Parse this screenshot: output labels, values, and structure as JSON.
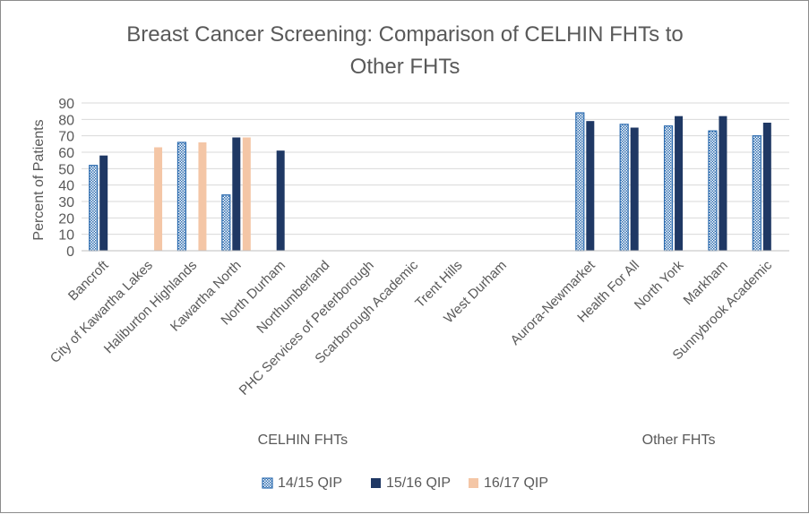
{
  "chart_data": {
    "type": "bar",
    "title_line1": "Breast Cancer Screening: Comparison of CELHIN FHTs to",
    "title_line2": "Other FHTs",
    "ylabel": "Percent of Patients",
    "xlabel": "",
    "ylim": [
      0,
      90
    ],
    "yticks": [
      0,
      10,
      20,
      30,
      40,
      50,
      60,
      70,
      80,
      90
    ],
    "grid": true,
    "legend_position": "bottom",
    "groups": [
      {
        "label": "CELHIN FHTs",
        "start": 0,
        "end": 9
      },
      {
        "label": "Other FHTs",
        "start": 11,
        "end": 15
      }
    ],
    "categories": [
      "Bancroft",
      "City of Kawartha Lakes",
      "Haliburton Highlands",
      "Kawartha North",
      "North Durham",
      "Northumberland",
      "PHC Services of Peterborough",
      "Scarborough Academic",
      "Trent Hills",
      "West Durham",
      "",
      "Aurora-Newmarket",
      "Health For All",
      "North York",
      "Markham",
      "Sunnybrook Academic"
    ],
    "series": [
      {
        "name": "14/15 QIP",
        "color": "#2e6db0",
        "pattern": "checker",
        "values": [
          52,
          null,
          66,
          34,
          null,
          null,
          null,
          null,
          null,
          null,
          null,
          84,
          77,
          76,
          73,
          70
        ]
      },
      {
        "name": "15/16 QIP",
        "color": "#1f3864",
        "pattern": "solid",
        "values": [
          58,
          null,
          null,
          69,
          61,
          null,
          null,
          null,
          null,
          null,
          null,
          79,
          75,
          82,
          82,
          78
        ]
      },
      {
        "name": "16/17 QIP",
        "color": "#f4c6a6",
        "pattern": "solid",
        "values": [
          null,
          63,
          66,
          69,
          null,
          null,
          null,
          null,
          null,
          null,
          null,
          null,
          null,
          null,
          null,
          null
        ]
      }
    ]
  }
}
